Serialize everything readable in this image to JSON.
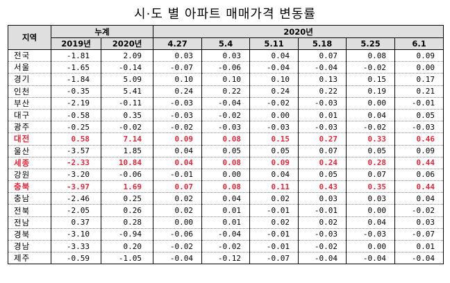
{
  "title": "시·도 별 아파트 매매가격 변동률",
  "header": {
    "region": "지역",
    "cumulative": "누계",
    "year2020": "2020년",
    "cols": [
      "2019년",
      "2020년",
      "4.27",
      "5.4",
      "5.11",
      "5.18",
      "5.25",
      "6.1"
    ]
  },
  "highlight_color": "#e0283a",
  "rows": [
    {
      "region": "전국",
      "values": [
        "-1.81",
        "2.09",
        "0.03",
        "0.03",
        "0.04",
        "0.07",
        "0.08",
        "0.09"
      ],
      "highlight": false
    },
    {
      "region": "서울",
      "values": [
        "-1.65",
        "-0.14",
        "-0.07",
        "-0.06",
        "-0.04",
        "-0.04",
        "-0.02",
        "0.00"
      ],
      "highlight": false
    },
    {
      "region": "경기",
      "values": [
        "-1.84",
        "5.09",
        "0.10",
        "0.10",
        "0.10",
        "0.13",
        "0.15",
        "0.17"
      ],
      "highlight": false
    },
    {
      "region": "인천",
      "values": [
        "-0.35",
        "5.41",
        "0.24",
        "0.22",
        "0.24",
        "0.22",
        "0.19",
        "0.21"
      ],
      "highlight": false
    },
    {
      "region": "부산",
      "values": [
        "-2.19",
        "-0.11",
        "-0.03",
        "-0.04",
        "-0.02",
        "-0.03",
        "0.00",
        "-0.01"
      ],
      "highlight": false
    },
    {
      "region": "대구",
      "values": [
        "-0.58",
        "0.35",
        "-0.03",
        "-0.02",
        "0.00",
        "0.01",
        "0.04",
        "0.05"
      ],
      "highlight": false
    },
    {
      "region": "광주",
      "values": [
        "-0.25",
        "-0.02",
        "-0.02",
        "-0.03",
        "-0.03",
        "-0.03",
        "-0.02",
        "-0.03"
      ],
      "highlight": false
    },
    {
      "region": "대전",
      "values": [
        "0.58",
        "7.14",
        "0.09",
        "0.08",
        "0.15",
        "0.27",
        "0.33",
        "0.46"
      ],
      "highlight": true
    },
    {
      "region": "울산",
      "values": [
        "-3.57",
        "1.85",
        "0.04",
        "0.05",
        "0.05",
        "0.07",
        "0.05",
        "0.09"
      ],
      "highlight": false
    },
    {
      "region": "세종",
      "values": [
        "-2.33",
        "10.84",
        "0.04",
        "0.08",
        "0.09",
        "0.24",
        "0.28",
        "0.44"
      ],
      "highlight": true
    },
    {
      "region": "강원",
      "values": [
        "-3.20",
        "-0.06",
        "-0.01",
        "0.00",
        "0.04",
        "0.05",
        "0.07",
        "0.06"
      ],
      "highlight": false
    },
    {
      "region": "충북",
      "values": [
        "-3.97",
        "1.69",
        "0.07",
        "0.08",
        "0.11",
        "0.43",
        "0.35",
        "0.44"
      ],
      "highlight": true
    },
    {
      "region": "충남",
      "values": [
        "-2.46",
        "0.25",
        "0.02",
        "0.04",
        "0.02",
        "0.03",
        "0.03",
        "0.04"
      ],
      "highlight": false
    },
    {
      "region": "전북",
      "values": [
        "-2.05",
        "0.26",
        "0.02",
        "0.01",
        "-0.01",
        "-0.01",
        "0.00",
        "-0.02"
      ],
      "highlight": false
    },
    {
      "region": "전남",
      "values": [
        "0.37",
        "0.28",
        "0.00",
        "0.01",
        "0.02",
        "0.02",
        "0.04",
        "0.03"
      ],
      "highlight": false
    },
    {
      "region": "경북",
      "values": [
        "-3.10",
        "-0.94",
        "-0.06",
        "-0.04",
        "-0.01",
        "-0.03",
        "-0.03",
        "-0.07"
      ],
      "highlight": false
    },
    {
      "region": "경남",
      "values": [
        "-3.33",
        "0.20",
        "-0.02",
        "-0.02",
        "-0.01",
        "-0.02",
        "0.00",
        "0.01"
      ],
      "highlight": false
    },
    {
      "region": "제주",
      "values": [
        "-0.59",
        "-1.05",
        "-0.04",
        "-0.12",
        "-0.07",
        "-0.04",
        "-0.04",
        "-0.04"
      ],
      "highlight": false
    }
  ]
}
